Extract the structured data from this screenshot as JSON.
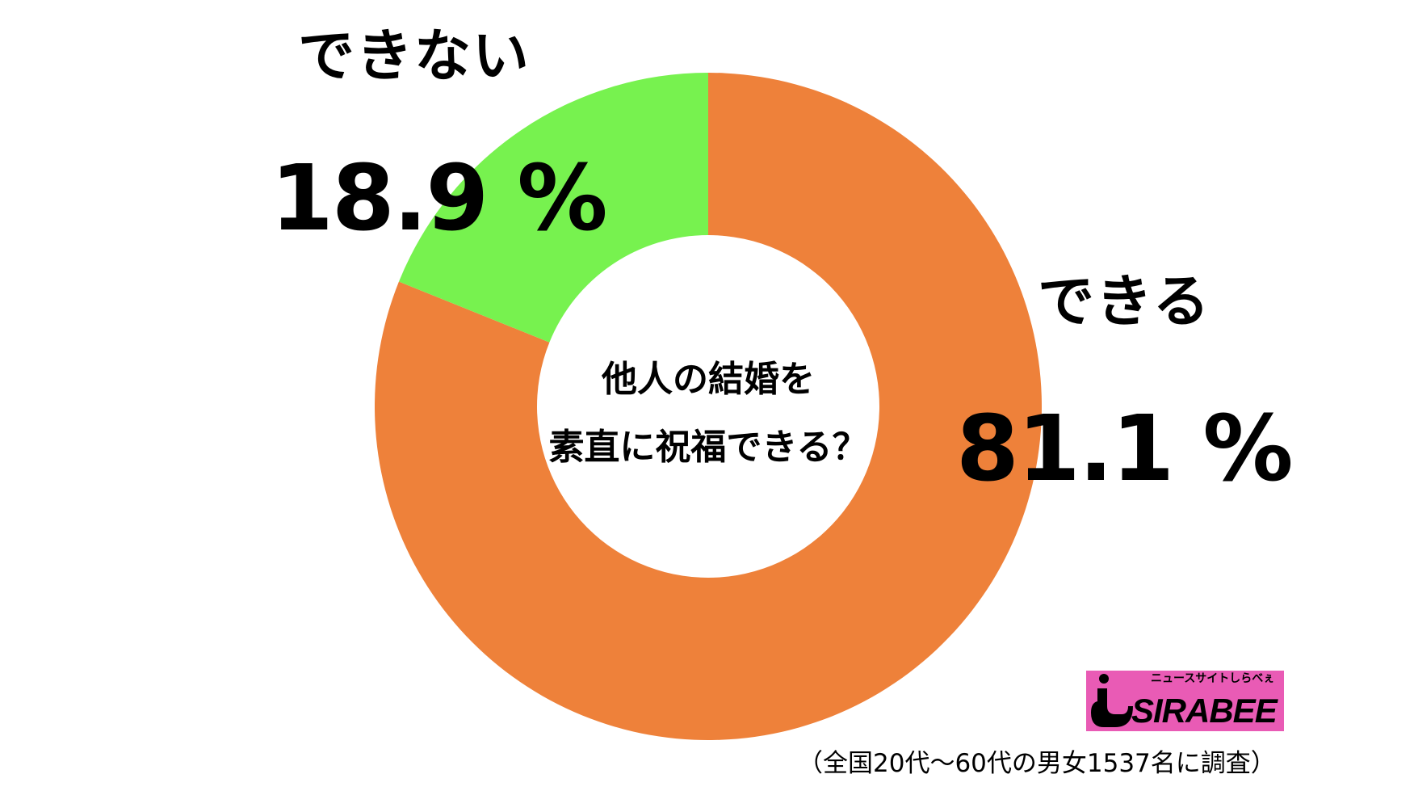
{
  "chart_data": {
    "type": "pie",
    "donut": true,
    "title": "他人の結婚を素直に祝福できる？",
    "title_lines": [
      "他人の結婚を",
      "素直に祝福できる？"
    ],
    "slices": [
      {
        "label": "できる",
        "value": 81.1,
        "display": "81.1 %",
        "color": "#EE813A"
      },
      {
        "label": "できない",
        "value": 18.9,
        "display": "18.9 %",
        "color": "#77F24F"
      }
    ],
    "note": "（全国20代〜60代の男女1537名に調査）"
  },
  "logo": {
    "tagline": "ニュースサイトしらべぇ",
    "name": "SIRABEE",
    "color": "#E95BB5"
  }
}
